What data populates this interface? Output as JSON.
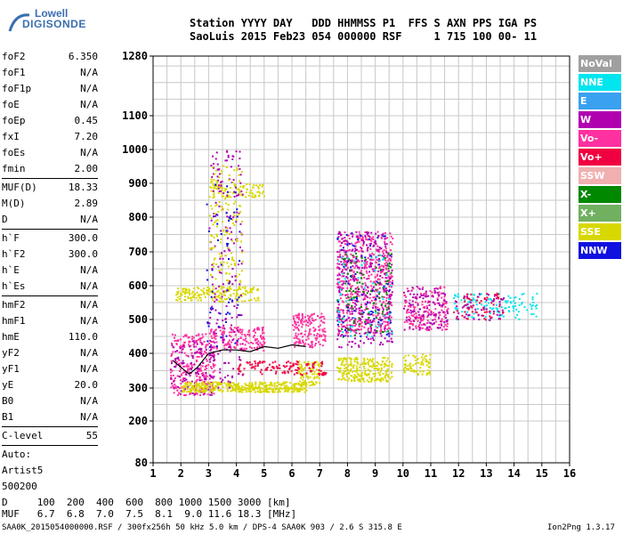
{
  "logo": {
    "line1": "Lowell",
    "line2": "DIGISONDE",
    "color": "#3a6fb0"
  },
  "header": {
    "row1": "Station YYYY DAY   DDD HHMMSS P1  FFS S AXN PPS IGA PS",
    "row2": "SaoLuis 2015 Feb23 054 000000 RSF     1 715 100 00- 11"
  },
  "params": {
    "group1": [
      {
        "label": "foF2",
        "value": "6.350"
      },
      {
        "label": "foF1",
        "value": "N/A"
      },
      {
        "label": "foF1p",
        "value": "N/A"
      },
      {
        "label": "foE",
        "value": "N/A"
      },
      {
        "label": "foEp",
        "value": "0.45"
      },
      {
        "label": "fxI",
        "value": "7.20"
      },
      {
        "label": "foEs",
        "value": "N/A"
      },
      {
        "label": "fmin",
        "value": "2.00"
      }
    ],
    "group2": [
      {
        "label": "MUF(D)",
        "value": "18.33"
      },
      {
        "label": "M(D)",
        "value": "2.89"
      },
      {
        "label": "D",
        "value": "N/A"
      }
    ],
    "group3": [
      {
        "label": "h`F",
        "value": "300.0"
      },
      {
        "label": "h`F2",
        "value": "300.0"
      },
      {
        "label": "h`E",
        "value": "N/A"
      },
      {
        "label": "h`Es",
        "value": "N/A"
      }
    ],
    "group4": [
      {
        "label": "hmF2",
        "value": "N/A"
      },
      {
        "label": "hmF1",
        "value": "N/A"
      },
      {
        "label": "hmE",
        "value": "110.0"
      },
      {
        "label": "yF2",
        "value": "N/A"
      },
      {
        "label": "yF1",
        "value": "N/A"
      },
      {
        "label": "yE",
        "value": "20.0"
      },
      {
        "label": "B0",
        "value": "N/A"
      },
      {
        "label": "B1",
        "value": "N/A"
      }
    ],
    "group5": [
      {
        "label": "C-level",
        "value": "55"
      }
    ],
    "auto": [
      "Auto:",
      "Artist5",
      "500200"
    ]
  },
  "legend": [
    {
      "label": "NoVal",
      "color": "#a0a0a0"
    },
    {
      "label": "NNE",
      "color": "#00e5ee"
    },
    {
      "label": "E",
      "color": "#3aa0f0"
    },
    {
      "label": "W",
      "color": "#b000b0"
    },
    {
      "label": "Vo-",
      "color": "#ff30a0"
    },
    {
      "label": "Vo+",
      "color": "#f00040"
    },
    {
      "label": "SSW",
      "color": "#f0b0b0"
    },
    {
      "label": "X-",
      "color": "#008800"
    },
    {
      "label": "X+",
      "color": "#70b060"
    },
    {
      "label": "SSE",
      "color": "#d8d800"
    },
    {
      "label": "NNW",
      "color": "#1010e0"
    }
  ],
  "bottom": {
    "d_line": "D     100  200  400  600  800 1000 1500 3000 [km]",
    "muf_line": "MUF   6.7  6.8  7.0  7.5  8.1  9.0 11.6 18.3 [MHz]",
    "footer_left": "SAA0K_2015054000000.RSF / 300fx256h 50 kHz 5.0 km / DPS-4 SAA0K 903 / 2.6 S 315.8 E",
    "footer_right": "Ion2Png 1.3.17"
  },
  "chart_data": {
    "type": "scatter",
    "x_ticks": [
      "1",
      "2",
      "3",
      "4",
      "5",
      "6",
      "7",
      "8",
      "9",
      "10",
      "11",
      "12",
      "13",
      "14",
      "15",
      "16"
    ],
    "y_ticks": [
      "80",
      "200",
      "300",
      "400",
      "500",
      "600",
      "700",
      "800",
      "900",
      "1000",
      "1100",
      "1280"
    ],
    "xlim": [
      1,
      16
    ],
    "y_scale": "nonlinear",
    "grid": true,
    "legend_position": "right",
    "regions": [
      {
        "color": "#ff30a0",
        "x": [
          1.6,
          3.2
        ],
        "y": [
          280,
          460
        ],
        "n": 260
      },
      {
        "color": "#b000b0",
        "x": [
          1.6,
          3.2
        ],
        "y": [
          280,
          440
        ],
        "n": 120
      },
      {
        "color": "#d8d800",
        "x": [
          2.0,
          6.5
        ],
        "y": [
          290,
          320
        ],
        "n": 420
      },
      {
        "color": "#d8d800",
        "x": [
          6.2,
          7.0
        ],
        "y": [
          310,
          380
        ],
        "n": 90
      },
      {
        "color": "#d8d800",
        "x": [
          1.8,
          4.8
        ],
        "y": [
          555,
          600
        ],
        "n": 180
      },
      {
        "color": "#d8d800",
        "x": [
          3.0,
          5.0
        ],
        "y": [
          860,
          900
        ],
        "n": 80
      },
      {
        "color": "#ff30a0",
        "x": [
          3.0,
          5.0
        ],
        "y": [
          410,
          480
        ],
        "n": 160
      },
      {
        "color": "#f00040",
        "x": [
          4.0,
          7.2
        ],
        "y": [
          340,
          380
        ],
        "n": 120
      },
      {
        "color": "#ff30a0",
        "x": [
          6.0,
          7.2
        ],
        "y": [
          420,
          520
        ],
        "n": 160
      },
      {
        "color": "#b000b0",
        "x": [
          3.0,
          4.2
        ],
        "y": [
          300,
          1000
        ],
        "n": 200
      },
      {
        "color": "#d8d800",
        "x": [
          3.0,
          4.2
        ],
        "y": [
          600,
          960
        ],
        "n": 140
      },
      {
        "color": "#1010e0",
        "x": [
          2.9,
          4.1
        ],
        "y": [
          420,
          900
        ],
        "n": 60
      },
      {
        "color": "#ff30a0",
        "x": [
          7.6,
          9.6
        ],
        "y": [
          460,
          760
        ],
        "n": 520
      },
      {
        "color": "#b000b0",
        "x": [
          7.6,
          9.6
        ],
        "y": [
          420,
          760
        ],
        "n": 320
      },
      {
        "color": "#008800",
        "x": [
          7.6,
          9.6
        ],
        "y": [
          450,
          700
        ],
        "n": 110
      },
      {
        "color": "#00e5ee",
        "x": [
          7.6,
          9.6
        ],
        "y": [
          450,
          700
        ],
        "n": 60
      },
      {
        "color": "#1010e0",
        "x": [
          7.6,
          9.6
        ],
        "y": [
          450,
          760
        ],
        "n": 70
      },
      {
        "color": "#d8d800",
        "x": [
          7.6,
          9.6
        ],
        "y": [
          320,
          390
        ],
        "n": 240
      },
      {
        "color": "#d8d800",
        "x": [
          10.0,
          11.0
        ],
        "y": [
          340,
          400
        ],
        "n": 80
      },
      {
        "color": "#ff30a0",
        "x": [
          10.0,
          11.6
        ],
        "y": [
          470,
          600
        ],
        "n": 180
      },
      {
        "color": "#b000b0",
        "x": [
          10.0,
          11.6
        ],
        "y": [
          470,
          600
        ],
        "n": 110
      },
      {
        "color": "#00e5ee",
        "x": [
          11.8,
          14.8
        ],
        "y": [
          500,
          580
        ],
        "n": 120
      },
      {
        "color": "#f00040",
        "x": [
          11.8,
          13.6
        ],
        "y": [
          500,
          580
        ],
        "n": 60
      },
      {
        "color": "#b000b0",
        "x": [
          11.8,
          13.6
        ],
        "y": [
          500,
          580
        ],
        "n": 50
      }
    ],
    "trace": {
      "color": "#000000",
      "x": [
        1.7,
        2.0,
        2.3,
        2.6,
        3.0,
        3.5,
        4.0,
        4.5,
        5.0,
        5.5,
        6.0,
        6.5
      ],
      "y": [
        380,
        360,
        340,
        360,
        400,
        410,
        410,
        405,
        420,
        415,
        425,
        420
      ]
    }
  }
}
